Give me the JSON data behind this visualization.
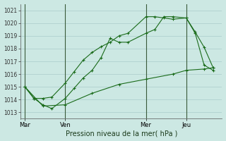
{
  "title": "Pression niveau de la mer( hPa )",
  "bg_color": "#cce8e3",
  "grid_color": "#aacccc",
  "line_color": "#1a6b1a",
  "ylim": [
    1012.5,
    1021.5
  ],
  "yticks": [
    1013,
    1014,
    1015,
    1016,
    1017,
    1018,
    1019,
    1020,
    1021
  ],
  "day_labels": [
    "Mar",
    "Ven",
    "Mer",
    "Jeu"
  ],
  "day_positions": [
    0,
    9,
    27,
    36
  ],
  "xlim": [
    -1,
    44
  ],
  "series1_x": [
    0,
    2,
    4,
    6,
    9,
    11,
    13,
    15,
    17,
    19,
    21,
    23,
    27,
    29,
    31,
    33,
    36,
    38,
    40,
    42
  ],
  "series1_y": [
    1015.0,
    1014.1,
    1014.1,
    1014.2,
    1015.3,
    1016.2,
    1017.1,
    1017.7,
    1018.15,
    1018.5,
    1019.0,
    1019.2,
    1020.5,
    1020.5,
    1020.4,
    1020.3,
    1020.4,
    1019.3,
    1018.1,
    1016.5
  ],
  "series2_x": [
    0,
    2,
    4,
    6,
    9,
    11,
    13,
    15,
    17,
    19,
    21,
    23,
    27,
    29,
    31,
    33,
    36,
    38,
    40,
    42
  ],
  "series2_y": [
    1015.0,
    1014.1,
    1013.6,
    1013.3,
    1014.1,
    1014.9,
    1015.7,
    1016.3,
    1017.3,
    1018.8,
    1018.5,
    1018.5,
    1019.2,
    1019.5,
    1020.5,
    1020.5,
    1020.4,
    1019.2,
    1016.7,
    1016.3
  ],
  "series3_x": [
    0,
    4,
    9,
    15,
    21,
    27,
    33,
    36,
    40,
    42
  ],
  "series3_y": [
    1015.0,
    1013.5,
    1013.6,
    1014.5,
    1015.2,
    1015.6,
    1016.0,
    1016.3,
    1016.4,
    1016.5
  ]
}
